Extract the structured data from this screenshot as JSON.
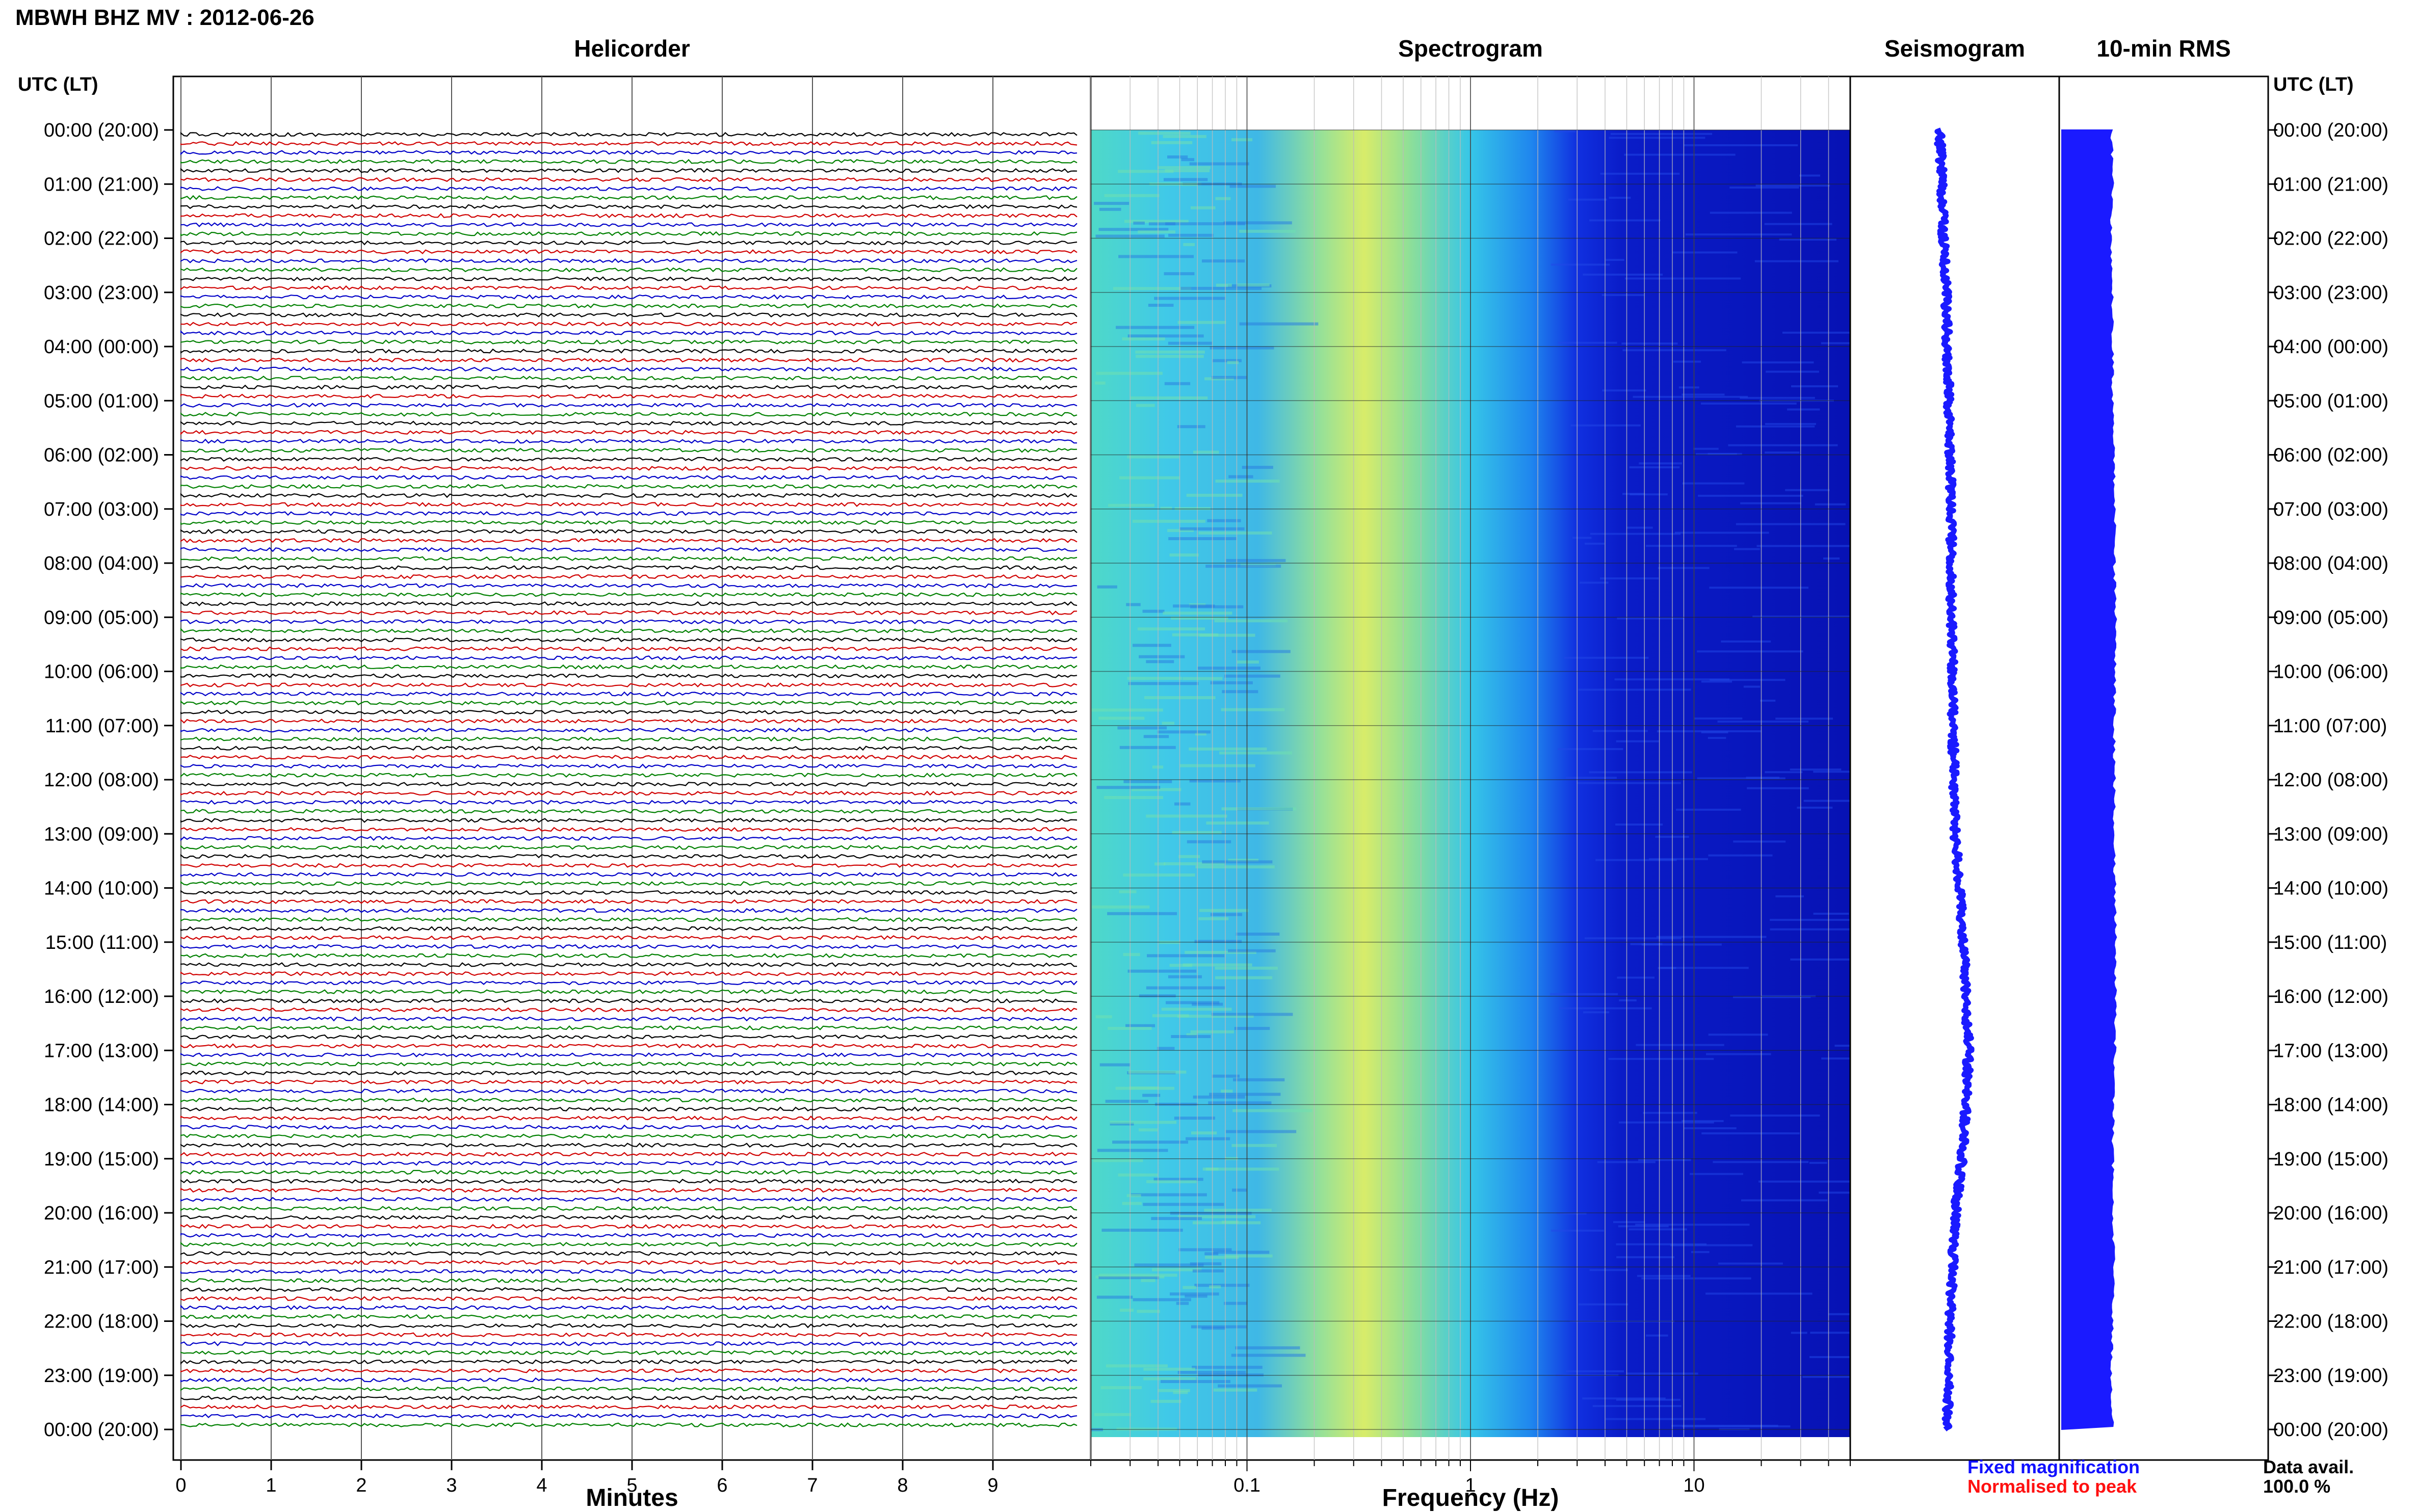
{
  "header": {
    "title": "MBWH BHZ MV : 2012-06-26"
  },
  "panels": {
    "helicorder": "Helicorder",
    "spectrogram": "Spectrogram",
    "seismogram": "Seismogram",
    "rms": "10-min RMS"
  },
  "axes": {
    "time_header_left": "UTC (LT)",
    "time_header_right": "UTC (LT)",
    "helicorder_xlabel": "Minutes",
    "spectrogram_xlabel": "Frequency (Hz)"
  },
  "legend": {
    "fixed": "Fixed magnification",
    "normalised": "Normalised to peak",
    "fixed_color": "#1010ff",
    "normalised_color": "#ff1010"
  },
  "availability": {
    "label": "Data avail.",
    "value": "100.0 %"
  },
  "chart_data": {
    "type": "helicorder",
    "time_labels": [
      "00:00 (20:00)",
      "01:00 (21:00)",
      "02:00 (22:00)",
      "03:00 (23:00)",
      "04:00 (00:00)",
      "05:00 (01:00)",
      "06:00 (02:00)",
      "07:00 (03:00)",
      "08:00 (04:00)",
      "09:00 (05:00)",
      "10:00 (06:00)",
      "11:00 (07:00)",
      "12:00 (08:00)",
      "13:00 (09:00)",
      "14:00 (10:00)",
      "15:00 (11:00)",
      "16:00 (12:00)",
      "17:00 (13:00)",
      "18:00 (14:00)",
      "19:00 (15:00)",
      "20:00 (16:00)",
      "21:00 (17:00)",
      "22:00 (18:00)",
      "23:00 (19:00)",
      "00:00 (20:00)"
    ],
    "helicorder": {
      "x_ticks": [
        "0",
        "1",
        "2",
        "3",
        "4",
        "5",
        "6",
        "7",
        "8",
        "9"
      ],
      "xlim": [
        0,
        10
      ],
      "trace_colors": [
        "#000000",
        "#d00000",
        "#0000c8",
        "#008000"
      ],
      "traces": 144
    },
    "spectrogram": {
      "x_ticks": [
        "0.1",
        "1",
        "10"
      ],
      "xlim": [
        0.02,
        50
      ],
      "xscale": "log"
    },
    "seismogram": {
      "offset_by_hour": [
        0,
        0.02,
        0.03,
        0.05,
        0.06,
        0.07,
        0.08,
        0.09,
        0.09,
        0.09,
        0.1,
        0.1,
        0.11,
        0.12,
        0.15,
        0.18,
        0.2,
        0.22,
        0.2,
        0.17,
        0.12,
        0.1,
        0.08,
        0.07,
        0.06
      ]
    },
    "rms": {
      "level_by_hour": [
        0.88,
        0.9,
        0.87,
        0.89,
        0.9,
        0.9,
        0.92,
        0.94,
        0.93,
        0.95,
        0.94,
        0.93,
        0.93,
        0.92,
        0.94,
        0.96,
        0.95,
        0.94,
        0.92,
        0.9,
        0.91,
        0.92,
        0.9,
        0.88,
        0.9
      ]
    }
  }
}
